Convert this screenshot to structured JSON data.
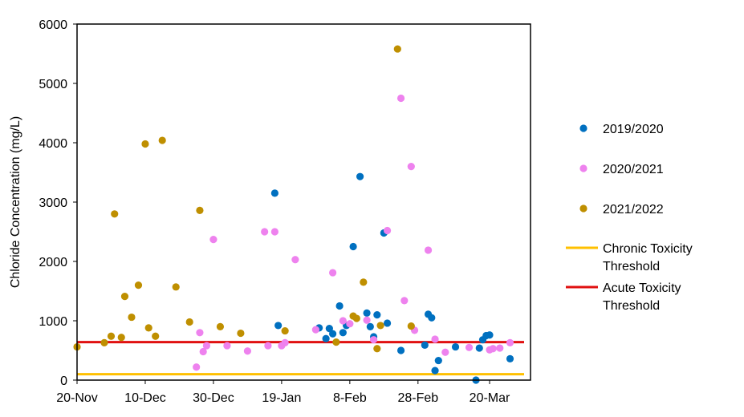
{
  "chart_data": {
    "type": "scatter",
    "title": "",
    "xlabel": "",
    "ylabel": "Chloride Concentration (mg/L)",
    "xlim": [
      "2019-11-20",
      "2020-04-01"
    ],
    "ylim": [
      0,
      6000
    ],
    "yticks": [
      0,
      1000,
      2000,
      3000,
      4000,
      5000,
      6000
    ],
    "xticks": [
      "2019-11-20",
      "2019-12-10",
      "2019-12-30",
      "2020-01-19",
      "2020-02-08",
      "2020-02-28",
      "2020-03-20"
    ],
    "xtick_labels": [
      "20-Nov",
      "10-Dec",
      "30-Dec",
      "19-Jan",
      "8-Feb",
      "28-Feb",
      "20-Mar"
    ],
    "grid": false,
    "legend_position": "right",
    "series": [
      {
        "name": "2019/2020",
        "color": "#0070C0",
        "marker": "circle",
        "points": [
          [
            "2020-01-17",
            3150
          ],
          [
            "2020-01-18",
            920
          ],
          [
            "2020-01-30",
            880
          ],
          [
            "2020-02-01",
            700
          ],
          [
            "2020-02-02",
            870
          ],
          [
            "2020-02-03",
            780
          ],
          [
            "2020-02-05",
            1250
          ],
          [
            "2020-02-06",
            800
          ],
          [
            "2020-02-07",
            920
          ],
          [
            "2020-02-09",
            2250
          ],
          [
            "2020-02-11",
            3430
          ],
          [
            "2020-02-13",
            1130
          ],
          [
            "2020-02-14",
            900
          ],
          [
            "2020-02-15",
            730
          ],
          [
            "2020-02-16",
            1100
          ],
          [
            "2020-02-18",
            2480
          ],
          [
            "2020-02-19",
            960
          ],
          [
            "2020-02-23",
            500
          ],
          [
            "2020-03-01",
            590
          ],
          [
            "2020-03-02",
            1110
          ],
          [
            "2020-03-03",
            1050
          ],
          [
            "2020-03-04",
            160
          ],
          [
            "2020-03-05",
            330
          ],
          [
            "2020-03-10",
            560
          ],
          [
            "2020-03-16",
            0
          ],
          [
            "2020-03-17",
            540
          ],
          [
            "2020-03-18",
            680
          ],
          [
            "2020-03-19",
            750
          ],
          [
            "2020-03-20",
            760
          ],
          [
            "2020-03-26",
            360
          ]
        ]
      },
      {
        "name": "2020/2021",
        "color": "#EE82EE",
        "marker": "circle",
        "points": [
          [
            "2019-12-25",
            220
          ],
          [
            "2019-12-26",
            800
          ],
          [
            "2019-12-27",
            480
          ],
          [
            "2019-12-28",
            580
          ],
          [
            "2019-12-30",
            2370
          ],
          [
            "2020-01-03",
            580
          ],
          [
            "2020-01-09",
            490
          ],
          [
            "2020-01-14",
            2500
          ],
          [
            "2020-01-15",
            580
          ],
          [
            "2020-01-17",
            2500
          ],
          [
            "2020-01-19",
            580
          ],
          [
            "2020-01-20",
            630
          ],
          [
            "2020-01-23",
            2030
          ],
          [
            "2020-01-29",
            850
          ],
          [
            "2020-02-03",
            1810
          ],
          [
            "2020-02-06",
            1000
          ],
          [
            "2020-02-08",
            950
          ],
          [
            "2020-02-13",
            1010
          ],
          [
            "2020-02-15",
            680
          ],
          [
            "2020-02-19",
            2520
          ],
          [
            "2020-02-23",
            4750
          ],
          [
            "2020-02-24",
            1340
          ],
          [
            "2020-02-26",
            3600
          ],
          [
            "2020-02-27",
            840
          ],
          [
            "2020-03-02",
            2190
          ],
          [
            "2020-03-04",
            690
          ],
          [
            "2020-03-07",
            470
          ],
          [
            "2020-03-14",
            550
          ],
          [
            "2020-03-20",
            510
          ],
          [
            "2020-03-21",
            530
          ],
          [
            "2020-03-23",
            540
          ],
          [
            "2020-03-26",
            630
          ]
        ]
      },
      {
        "name": "2021/2022",
        "color": "#BF8F00",
        "marker": "circle",
        "points": [
          [
            "2019-11-20",
            560
          ],
          [
            "2019-11-28",
            630
          ],
          [
            "2019-11-30",
            740
          ],
          [
            "2019-12-01",
            2800
          ],
          [
            "2019-12-03",
            720
          ],
          [
            "2019-12-04",
            1410
          ],
          [
            "2019-12-06",
            1060
          ],
          [
            "2019-12-08",
            1600
          ],
          [
            "2019-12-10",
            3980
          ],
          [
            "2019-12-11",
            880
          ],
          [
            "2019-12-13",
            740
          ],
          [
            "2019-12-15",
            4040
          ],
          [
            "2019-12-19",
            1570
          ],
          [
            "2019-12-23",
            980
          ],
          [
            "2019-12-26",
            2860
          ],
          [
            "2020-01-01",
            900
          ],
          [
            "2020-01-07",
            790
          ],
          [
            "2020-01-20",
            830
          ],
          [
            "2020-02-04",
            640
          ],
          [
            "2020-02-09",
            1080
          ],
          [
            "2020-02-10",
            1040
          ],
          [
            "2020-02-12",
            1650
          ],
          [
            "2020-02-16",
            530
          ],
          [
            "2020-02-17",
            920
          ],
          [
            "2020-02-22",
            5580
          ],
          [
            "2020-02-26",
            910
          ]
        ]
      }
    ],
    "reference_lines": [
      {
        "name": "Chronic Toxicity Threshold",
        "y": 100,
        "color": "#FFC000"
      },
      {
        "name": "Acute Toxicity Threshold",
        "y": 640,
        "color": "#E01010"
      }
    ],
    "legend": [
      {
        "label": "2019/2020",
        "kind": "marker",
        "color": "#0070C0"
      },
      {
        "label": "2020/2021",
        "kind": "marker",
        "color": "#EE82EE"
      },
      {
        "label": "2021/2022",
        "kind": "marker",
        "color": "#BF8F00"
      },
      {
        "label_lines": [
          "Chronic Toxicity",
          "Threshold"
        ],
        "kind": "line",
        "color": "#FFC000"
      },
      {
        "label_lines": [
          "Acute Toxicity",
          "Threshold"
        ],
        "kind": "line",
        "color": "#E01010"
      }
    ]
  }
}
